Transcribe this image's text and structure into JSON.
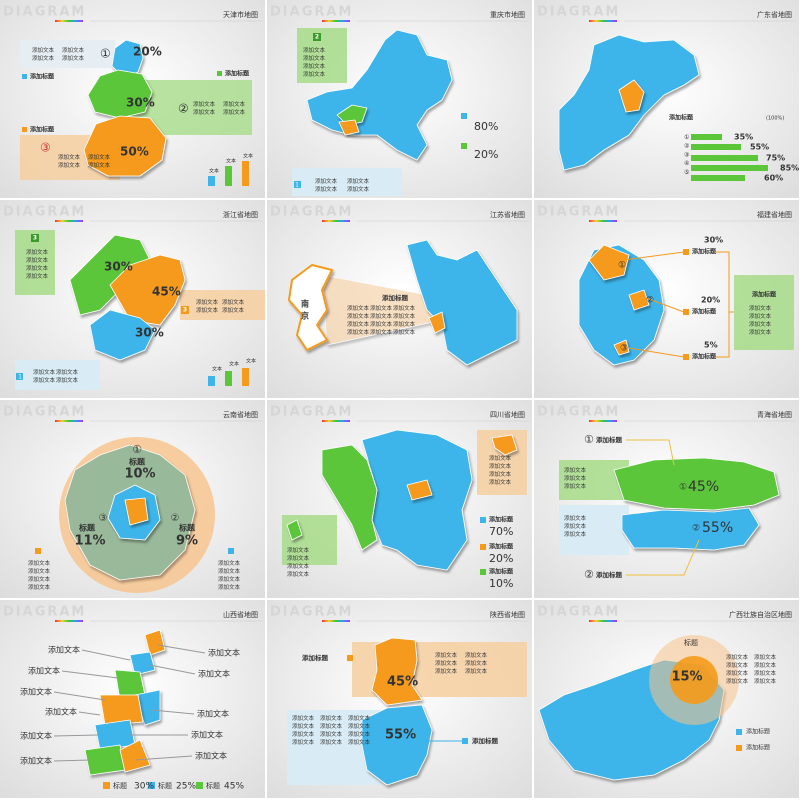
{
  "watermark": "DIAGRAM",
  "slides": [
    {
      "title": "天津市地图",
      "labels": [
        "①",
        "20%",
        [
          "添加文本",
          "添加文本"
        ],
        [
          "添加文本",
          "添加文本"
        ],
        "添加标题",
        "添加标题",
        "30%",
        "②",
        [
          "添加文本",
          "添加文本"
        ],
        [
          "添加文本",
          "添加文本"
        ],
        "添加标题",
        "③",
        [
          "添加文本",
          "添加文本"
        ],
        [
          "添加文本",
          "添加文本"
        ],
        "50%",
        "文本",
        "文本",
        "文本"
      ]
    },
    {
      "title": "重庆市地图",
      "labels": [
        "2",
        [
          "添加文本",
          "添加文本",
          "添加文本",
          "添加文本"
        ],
        "80%",
        "20%",
        "1",
        [
          "添加文本",
          "添加文本"
        ],
        [
          "添加文本",
          "添加文本"
        ]
      ]
    },
    {
      "title": "广东省地图",
      "labels": [
        "添加标题",
        "(100%)",
        [
          "①",
          "②",
          "③",
          "④",
          "⑤"
        ],
        "35%",
        "55%",
        "75%",
        "85%",
        "60%"
      ]
    },
    {
      "title": "浙江省地图",
      "labels": [
        "3",
        [
          "添加文本",
          "添加文本",
          "添加文本",
          "添加文本"
        ],
        "30%",
        "45%",
        "30%",
        "3",
        [
          "添加文本",
          "添加文本"
        ],
        [
          "添加文本",
          "添加文本"
        ],
        "1",
        [
          "添加文本",
          "添加文本"
        ],
        [
          "添加文本",
          "添加文本"
        ],
        "文本",
        "文本",
        "文本"
      ]
    },
    {
      "title": "江苏省地图",
      "labels": [
        "南",
        "京",
        "添加标题",
        [
          "添加文本",
          "添加文本",
          "添加文本",
          "添加文本"
        ],
        [
          "添加文本",
          "添加文本",
          "添加文本",
          "添加文本"
        ],
        [
          "添加文本",
          "添加文本",
          "添加文本",
          "添加文本"
        ]
      ]
    },
    {
      "title": "福建省地图",
      "labels": [
        "30%",
        "添加标题",
        "①",
        "②",
        "20%",
        "添加标题",
        "③",
        "5%",
        "添加标题",
        "添加标题",
        [
          "添加文本",
          "添加文本",
          "添加文本",
          "添加文本"
        ]
      ]
    },
    {
      "title": "云南省地图",
      "labels": [
        "①",
        "标题",
        "10%",
        "③",
        "标题",
        "11%",
        "②",
        "标题",
        "9%",
        [
          "添加文本",
          "添加文本",
          "添加文本",
          "添加文本"
        ],
        [
          "添加文本",
          "添加文本",
          "添加文本",
          "添加文本"
        ]
      ]
    },
    {
      "title": "四川省地图",
      "labels": [
        [
          "添加文本",
          "添加文本",
          "添加文本",
          "添加文本"
        ],
        [
          "添加文本",
          "添加文本",
          "添加文本",
          "添加文本"
        ],
        "添加标题",
        "70%",
        "添加标题",
        "20%",
        "添加标题",
        "10%"
      ]
    },
    {
      "title": "青海省地图",
      "labels": [
        "①",
        "添加标题",
        [
          "添加文本",
          "添加文本",
          "添加文本"
        ],
        [
          "添加文本",
          "添加文本",
          "添加文本"
        ],
        "①",
        "45%",
        "②",
        "55%",
        "②",
        "添加标题"
      ]
    },
    {
      "title": "山西省地图",
      "labels": [
        "添加文本",
        "添加文本",
        "添加文本",
        "添加文本",
        "添加文本",
        "添加文本",
        "添加文本",
        "添加文本",
        "添加文本",
        "添加文本",
        "添加文本",
        "标题",
        "30%",
        "标题",
        "25%",
        "标题",
        "45%"
      ]
    },
    {
      "title": "陕西省地图",
      "labels": [
        "添加标题",
        [
          "添加文本",
          "添加文本",
          "添加文本"
        ],
        [
          "添加文本",
          "添加文本",
          "添加文本"
        ],
        "45%",
        [
          "添加文本",
          "添加文本",
          "添加文本",
          "添加文本"
        ],
        [
          "添加文本",
          "添加文本",
          "添加文本",
          "添加文本"
        ],
        [
          "添加文本",
          "添加文本",
          "添加文本",
          "添加文本"
        ],
        "55%",
        "添加标题"
      ]
    },
    {
      "title": "广西壮族自治区地图",
      "labels": [
        "标题",
        "15%",
        [
          "添加文本",
          "添加文本",
          "添加文本",
          "添加文本"
        ],
        [
          "添加文本",
          "添加文本",
          "添加文本",
          "添加文本"
        ],
        "添加标题",
        "添加标题"
      ]
    }
  ]
}
